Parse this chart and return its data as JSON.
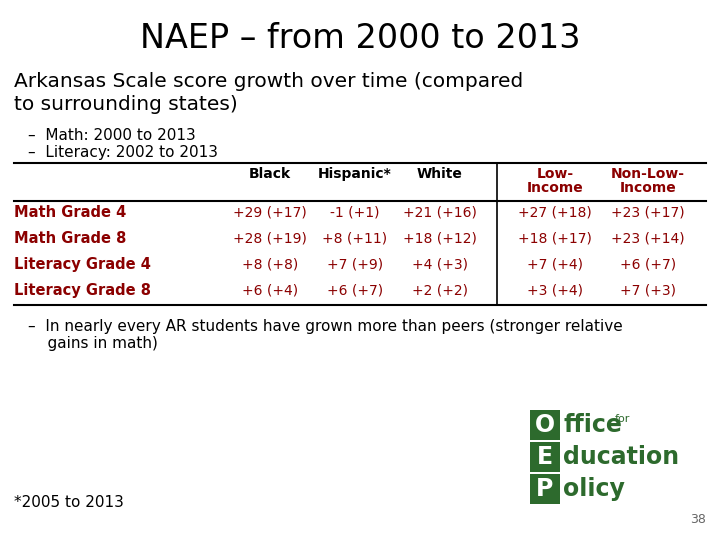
{
  "title": "NAEP – from 2000 to 2013",
  "subtitle": "Arkansas Scale score growth over time (compared\nto surrounding states)",
  "bullets": [
    "–  Math: 2000 to 2013",
    "–  Literacy: 2002 to 2013"
  ],
  "table_headers_line1": [
    "",
    "Black",
    "Hispanic*",
    "White",
    "Low-",
    "Non-Low-"
  ],
  "table_headers_line2": [
    "",
    "",
    "",
    "",
    "Income",
    "Income"
  ],
  "table_rows": [
    [
      "Math Grade 4",
      "+29 (+17)",
      "-1 (+1)",
      "+21 (+16)",
      "+27 (+18)",
      "+23 (+17)"
    ],
    [
      "Math Grade 8",
      "+28 (+19)",
      "+8 (+11)",
      "+18 (+12)",
      "+18 (+17)",
      "+23 (+14)"
    ],
    [
      "Literacy Grade 4",
      "+8 (+8)",
      "+7 (+9)",
      "+4 (+3)",
      "+7 (+4)",
      "+6 (+7)"
    ],
    [
      "Literacy Grade 8",
      "+6 (+4)",
      "+6 (+7)",
      "+2 (+2)",
      "+3 (+4)",
      "+7 (+3)"
    ]
  ],
  "row_label_color": "#8B0000",
  "data_color": "#8B0000",
  "footer_bullet_line1": "–  In nearly every AR students have grown more than peers (stronger relative",
  "footer_bullet_line2": "    gains in math)",
  "footnote": "*2005 to 2013",
  "page_number": "38",
  "bg_color": "#FFFFFF",
  "title_color": "#000000",
  "subtitle_color": "#000000",
  "bullet_color": "#000000",
  "logo_green": "#2D6A2D",
  "logo_dark": "#1A4A1A"
}
